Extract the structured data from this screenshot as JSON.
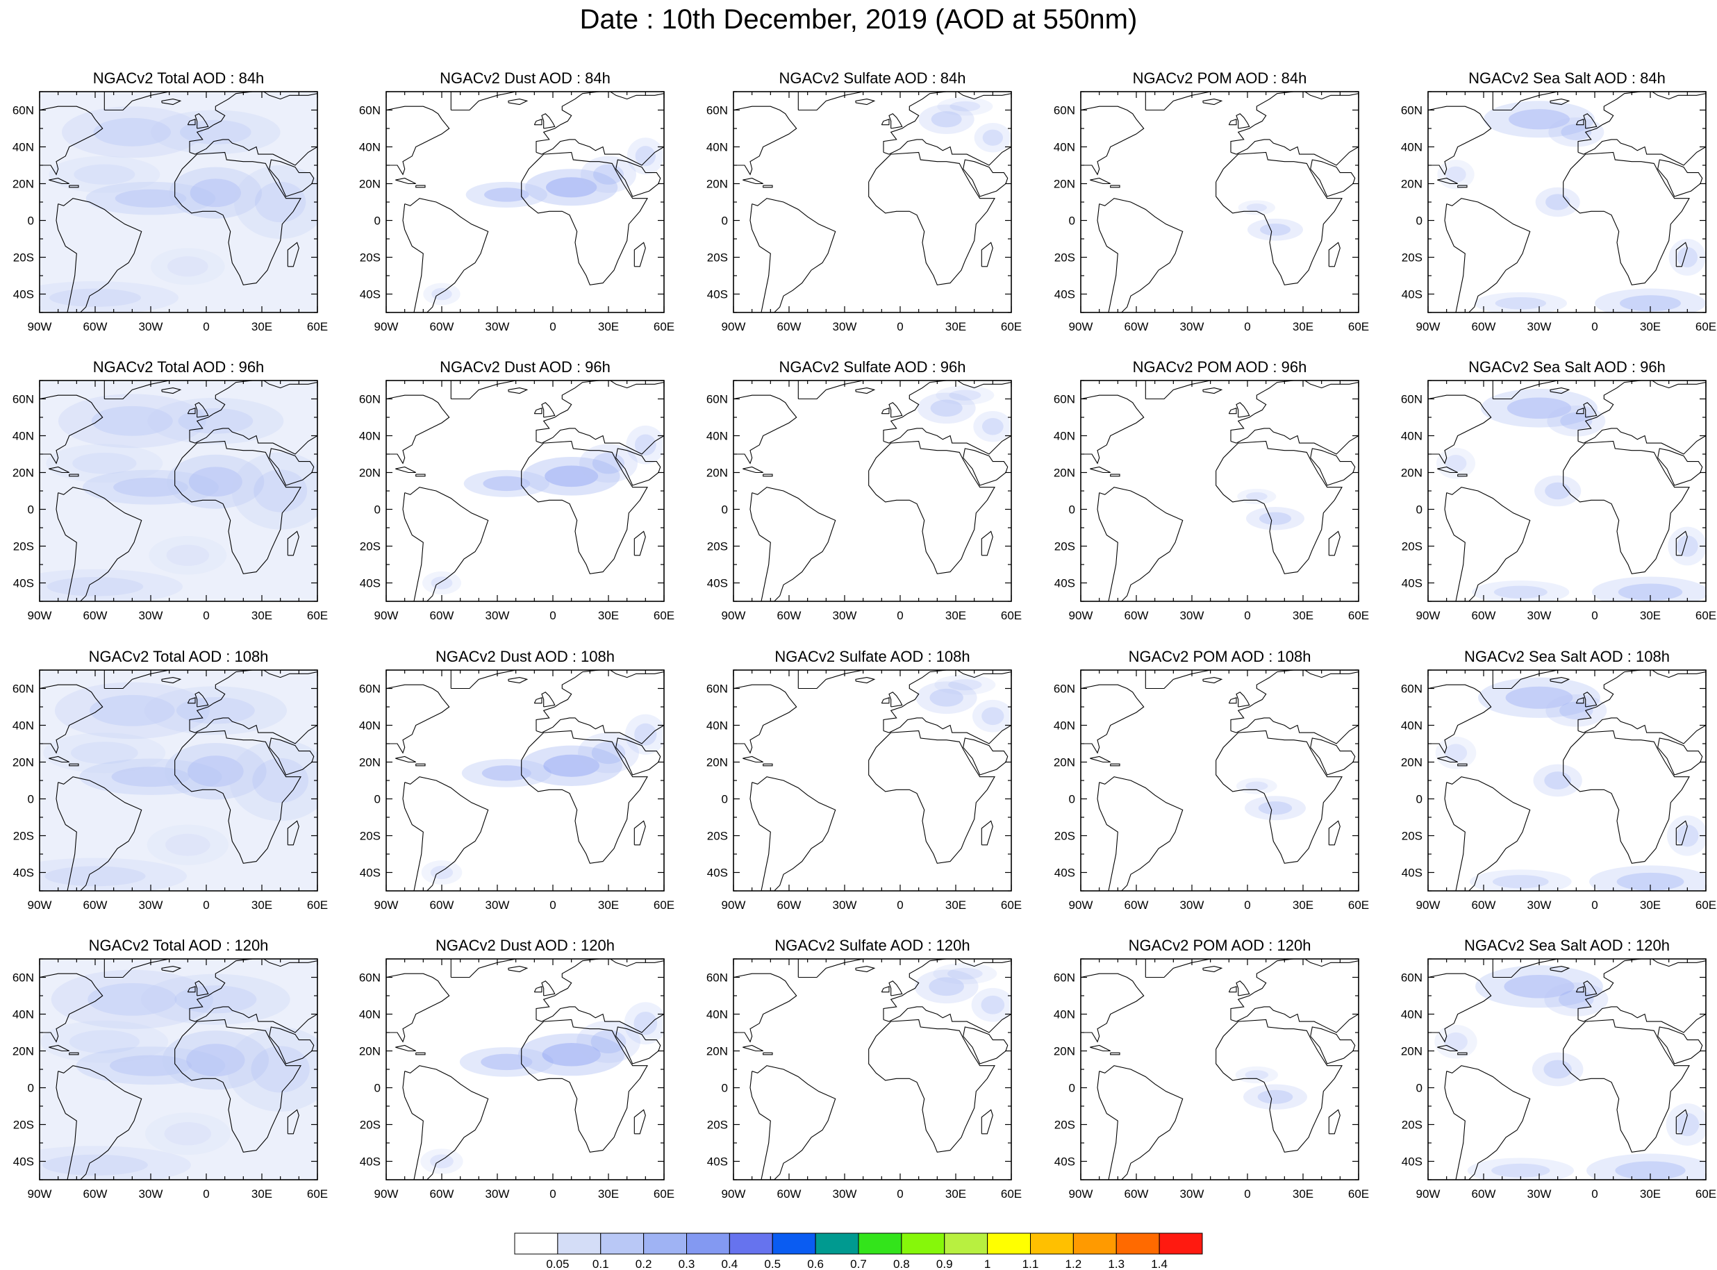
{
  "title": "Date : 10th December, 2019 (AOD at 550nm)",
  "panel_titles": [
    [
      "NGACv2 Total AOD : 84h",
      "NGACv2 Dust AOD : 84h",
      "NGACv2 Sulfate AOD : 84h",
      "NGACv2 POM AOD : 84h",
      "NGACv2 Sea Salt AOD : 84h"
    ],
    [
      "NGACv2 Total AOD : 96h",
      "NGACv2 Dust AOD : 96h",
      "NGACv2 Sulfate AOD : 96h",
      "NGACv2 POM AOD : 96h",
      "NGACv2 Sea Salt AOD : 96h"
    ],
    [
      "NGACv2 Total AOD : 108h",
      "NGACv2 Dust AOD : 108h",
      "NGACv2 Sulfate AOD : 108h",
      "NGACv2 POM AOD : 108h",
      "NGACv2 Sea Salt AOD : 108h"
    ],
    [
      "NGACv2 Total AOD : 120h",
      "NGACv2 Dust AOD : 120h",
      "NGACv2 Sulfate AOD : 120h",
      "NGACv2 POM AOD : 120h",
      "NGACv2 Sea Salt  AOD : 120h"
    ]
  ],
  "map_extent": {
    "lon": [
      -90,
      60
    ],
    "lat": [
      -50,
      70
    ]
  },
  "lon_ticks": [
    {
      "v": -90,
      "label": "90W"
    },
    {
      "v": -60,
      "label": "60W"
    },
    {
      "v": -30,
      "label": "30W"
    },
    {
      "v": 0,
      "label": "0"
    },
    {
      "v": 30,
      "label": "30E"
    },
    {
      "v": 60,
      "label": "60E"
    }
  ],
  "lat_ticks": [
    {
      "v": 60,
      "label": "60N"
    },
    {
      "v": 40,
      "label": "40N"
    },
    {
      "v": 20,
      "label": "20N"
    },
    {
      "v": 0,
      "label": "0"
    },
    {
      "v": -20,
      "label": "20S"
    },
    {
      "v": -40,
      "label": "40S"
    }
  ],
  "colorbar": {
    "labels": [
      "0.05",
      "0.1",
      "0.2",
      "0.3",
      "0.4",
      "0.5",
      "0.6",
      "0.7",
      "0.8",
      "0.9",
      "1",
      "1.1",
      "1.2",
      "1.3",
      "1.4"
    ],
    "colors": [
      "#ffffff",
      "#d4ddf7",
      "#b9c8f6",
      "#9fb3f4",
      "#8399f2",
      "#6673ee",
      "#0a5cf2",
      "#009a90",
      "#33e41b",
      "#86f70a",
      "#b8f040",
      "#ffff00",
      "#ffc000",
      "#ff9a00",
      "#ff6a00",
      "#ff1a10"
    ]
  },
  "plumes": {
    "total": [
      [
        -30,
        12,
        35,
        9,
        0.45
      ],
      [
        5,
        15,
        25,
        14,
        0.5
      ],
      [
        -40,
        48,
        38,
        14,
        0.35
      ],
      [
        5,
        48,
        35,
        12,
        0.3
      ],
      [
        -60,
        -42,
        45,
        9,
        0.25
      ],
      [
        -55,
        25,
        30,
        10,
        0.2
      ],
      [
        -10,
        -25,
        20,
        10,
        0.15
      ],
      [
        40,
        10,
        25,
        20,
        0.3
      ]
    ],
    "dust": [
      [
        -25,
        14,
        22,
        7,
        0.4
      ],
      [
        10,
        18,
        25,
        10,
        0.5
      ],
      [
        30,
        25,
        15,
        10,
        0.3
      ],
      [
        -60,
        -40,
        10,
        6,
        0.2
      ],
      [
        50,
        35,
        10,
        10,
        0.25
      ]
    ],
    "sulfate": [
      [
        25,
        55,
        15,
        8,
        0.3
      ],
      [
        50,
        45,
        10,
        8,
        0.25
      ],
      [
        35,
        62,
        15,
        5,
        0.2
      ]
    ],
    "pom": [
      [
        15,
        -5,
        15,
        6,
        0.3
      ],
      [
        5,
        7,
        10,
        4,
        0.2
      ]
    ],
    "seasalt": [
      [
        -30,
        55,
        30,
        10,
        0.4
      ],
      [
        -10,
        48,
        15,
        8,
        0.3
      ],
      [
        -20,
        10,
        12,
        8,
        0.3
      ],
      [
        30,
        -45,
        30,
        8,
        0.35
      ],
      [
        -40,
        -45,
        25,
        6,
        0.25
      ],
      [
        50,
        -20,
        10,
        10,
        0.25
      ],
      [
        -75,
        25,
        10,
        8,
        0.2
      ]
    ]
  }
}
